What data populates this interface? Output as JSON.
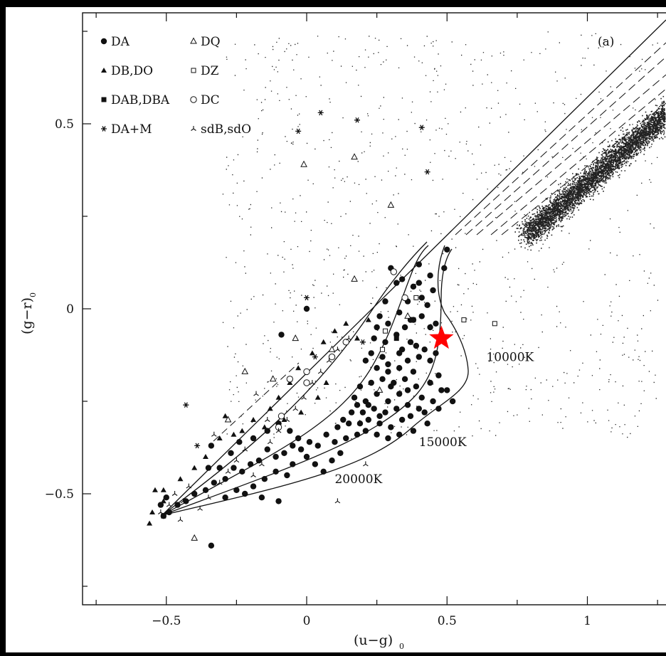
{
  "chart_data": {
    "type": "scatter",
    "panel_label": "(a)",
    "xlabel": "(u−g)",
    "xlabel_sub": "0",
    "ylabel": "(g−r)",
    "ylabel_sub": "0",
    "xlim": [
      -0.8,
      1.27
    ],
    "ylim": [
      -0.8,
      0.8
    ],
    "xticks": [
      {
        "value": -0.5,
        "label": "−0.5"
      },
      {
        "value": 0,
        "label": "0"
      },
      {
        "value": 0.5,
        "label": "0.5"
      },
      {
        "value": 1,
        "label": "1"
      }
    ],
    "yticks": [
      {
        "value": -0.5,
        "label": "−0.5"
      },
      {
        "value": 0,
        "label": "0"
      },
      {
        "value": 0.5,
        "label": "0.5"
      }
    ],
    "legend": [
      {
        "name": "DA",
        "marker": "filled-circle"
      },
      {
        "name": "DQ",
        "marker": "open-triangle"
      },
      {
        "name": "DB,DO",
        "marker": "filled-triangle"
      },
      {
        "name": "DZ",
        "marker": "open-square"
      },
      {
        "name": "DAB,DBA",
        "marker": "filled-square"
      },
      {
        "name": "DC",
        "marker": "open-circle"
      },
      {
        "name": "DA+M",
        "marker": "asterisk"
      },
      {
        "name": "sdB,sdO",
        "marker": "skeletal-triangle"
      }
    ],
    "legend_position": "top-left",
    "temperature_labels": [
      {
        "text": "10000K",
        "x": 0.64,
        "y": -0.13
      },
      {
        "text": "15000K",
        "x": 0.4,
        "y": -0.36
      },
      {
        "text": "20000K",
        "x": 0.1,
        "y": -0.46
      }
    ],
    "highlight": {
      "marker": "red-star",
      "color": "#ff0000",
      "x": 0.48,
      "y": -0.08
    },
    "series": [
      {
        "name": "DA",
        "marker": "filled-circle",
        "points": [
          [
            0.3,
            0.11
          ],
          [
            0.34,
            0.08
          ],
          [
            0.36,
            0.02
          ],
          [
            0.38,
            0.06
          ],
          [
            0.41,
            0.03
          ],
          [
            0.45,
            0.05
          ],
          [
            0.49,
            0.11
          ],
          [
            0.5,
            0.16
          ],
          [
            0.44,
            0.09
          ],
          [
            0.4,
            0.12
          ],
          [
            0.32,
            0.07
          ],
          [
            0.28,
            0.02
          ],
          [
            0.26,
            -0.02
          ],
          [
            0.25,
            -0.05
          ],
          [
            0.29,
            -0.04
          ],
          [
            0.33,
            -0.01
          ],
          [
            0.35,
            -0.05
          ],
          [
            0.38,
            -0.03
          ],
          [
            0.41,
            -0.02
          ],
          [
            0.43,
            0.01
          ],
          [
            0.44,
            -0.05
          ],
          [
            0.46,
            -0.04
          ],
          [
            0.48,
            -0.07
          ],
          [
            0.37,
            -0.09
          ],
          [
            0.39,
            -0.1
          ],
          [
            0.34,
            -0.11
          ],
          [
            0.32,
            -0.07
          ],
          [
            0.28,
            -0.09
          ],
          [
            0.24,
            -0.08
          ],
          [
            0.27,
            -0.13
          ],
          [
            0.23,
            -0.12
          ],
          [
            0.21,
            -0.14
          ],
          [
            0.25,
            -0.16
          ],
          [
            0.29,
            -0.15
          ],
          [
            0.33,
            -0.16
          ],
          [
            0.36,
            -0.14
          ],
          [
            0.4,
            -0.13
          ],
          [
            0.42,
            -0.11
          ],
          [
            0.44,
            -0.14
          ],
          [
            0.46,
            -0.12
          ],
          [
            0.38,
            -0.17
          ],
          [
            0.35,
            -0.19
          ],
          [
            0.31,
            -0.2
          ],
          [
            0.27,
            -0.19
          ],
          [
            0.23,
            -0.2
          ],
          [
            0.19,
            -0.21
          ],
          [
            0.17,
            -0.24
          ],
          [
            0.21,
            -0.25
          ],
          [
            0.25,
            -0.23
          ],
          [
            0.29,
            -0.25
          ],
          [
            0.33,
            -0.23
          ],
          [
            0.36,
            -0.22
          ],
          [
            0.39,
            -0.21
          ],
          [
            0.41,
            -0.24
          ],
          [
            0.44,
            -0.2
          ],
          [
            0.47,
            -0.18
          ],
          [
            0.48,
            -0.22
          ],
          [
            0.45,
            -0.25
          ],
          [
            0.4,
            -0.27
          ],
          [
            0.36,
            -0.26
          ],
          [
            0.32,
            -0.27
          ],
          [
            0.28,
            -0.28
          ],
          [
            0.24,
            -0.27
          ],
          [
            0.2,
            -0.28
          ],
          [
            0.16,
            -0.28
          ],
          [
            0.13,
            -0.3
          ],
          [
            0.11,
            -0.32
          ],
          [
            0.15,
            -0.31
          ],
          [
            0.19,
            -0.31
          ],
          [
            0.22,
            -0.3
          ],
          [
            0.26,
            -0.31
          ],
          [
            0.3,
            -0.32
          ],
          [
            0.34,
            -0.3
          ],
          [
            0.37,
            -0.29
          ],
          [
            0.42,
            -0.28
          ],
          [
            0.47,
            -0.27
          ],
          [
            0.5,
            -0.22
          ],
          [
            0.52,
            -0.25
          ],
          [
            0.43,
            -0.31
          ],
          [
            0.38,
            -0.33
          ],
          [
            0.33,
            -0.34
          ],
          [
            0.29,
            -0.35
          ],
          [
            0.25,
            -0.34
          ],
          [
            0.21,
            -0.33
          ],
          [
            0.18,
            -0.34
          ],
          [
            0.14,
            -0.35
          ],
          [
            0.1,
            -0.36
          ],
          [
            0.07,
            -0.34
          ],
          [
            0.04,
            -0.37
          ],
          [
            0.01,
            -0.36
          ],
          [
            -0.02,
            -0.38
          ],
          [
            -0.05,
            -0.37
          ],
          [
            -0.08,
            -0.39
          ],
          [
            -0.11,
            -0.4
          ],
          [
            -0.14,
            -0.38
          ],
          [
            -0.17,
            -0.41
          ],
          [
            -0.2,
            -0.42
          ],
          [
            -0.23,
            -0.44
          ],
          [
            -0.26,
            -0.43
          ],
          [
            -0.29,
            -0.46
          ],
          [
            -0.33,
            -0.47
          ],
          [
            -0.36,
            -0.49
          ],
          [
            -0.4,
            -0.5
          ],
          [
            -0.43,
            -0.52
          ],
          [
            -0.46,
            -0.53
          ],
          [
            -0.49,
            -0.55
          ],
          [
            -0.51,
            -0.56
          ],
          [
            -0.52,
            -0.53
          ],
          [
            -0.5,
            -0.51
          ],
          [
            -0.27,
            -0.39
          ],
          [
            -0.24,
            -0.36
          ],
          [
            -0.19,
            -0.35
          ],
          [
            -0.14,
            -0.33
          ],
          [
            -0.1,
            -0.31
          ],
          [
            -0.06,
            -0.33
          ],
          [
            -0.03,
            -0.35
          ],
          [
            0.0,
            -0.4
          ],
          [
            0.03,
            -0.42
          ],
          [
            0.06,
            -0.44
          ],
          [
            0.09,
            -0.41
          ],
          [
            0.12,
            -0.39
          ],
          [
            -0.07,
            -0.45
          ],
          [
            -0.11,
            -0.44
          ],
          [
            -0.15,
            -0.46
          ],
          [
            -0.19,
            -0.48
          ],
          [
            -0.22,
            -0.5
          ],
          [
            -0.25,
            -0.49
          ],
          [
            -0.29,
            -0.51
          ],
          [
            -0.1,
            -0.52
          ],
          [
            -0.16,
            -0.51
          ],
          [
            -0.31,
            -0.43
          ],
          [
            -0.35,
            -0.43
          ],
          [
            -0.34,
            -0.37
          ],
          [
            -0.09,
            -0.07
          ],
          [
            0.0,
            0.0
          ],
          [
            -0.05,
            -0.42
          ],
          [
            -0.34,
            -0.64
          ],
          [
            0.22,
            -0.26
          ],
          [
            0.26,
            -0.29
          ],
          [
            0.18,
            -0.26
          ],
          [
            0.3,
            -0.21
          ],
          [
            0.29,
            -0.17
          ],
          [
            0.33,
            -0.12
          ],
          [
            0.37,
            -0.03
          ],
          [
            0.4,
            0.07
          ]
        ]
      },
      {
        "name": "DB,DO",
        "marker": "filled-triangle",
        "points": [
          [
            -0.51,
            -0.52
          ],
          [
            -0.54,
            -0.49
          ],
          [
            -0.55,
            -0.55
          ],
          [
            -0.51,
            -0.49
          ],
          [
            -0.45,
            -0.46
          ],
          [
            -0.4,
            -0.43
          ],
          [
            -0.36,
            -0.4
          ],
          [
            -0.31,
            -0.35
          ],
          [
            -0.26,
            -0.34
          ],
          [
            -0.23,
            -0.33
          ],
          [
            -0.19,
            -0.3
          ],
          [
            -0.15,
            -0.32
          ],
          [
            -0.13,
            -0.27
          ],
          [
            -0.1,
            -0.24
          ],
          [
            -0.06,
            -0.2
          ],
          [
            -0.03,
            -0.16
          ],
          [
            0.02,
            -0.12
          ],
          [
            0.06,
            -0.09
          ],
          [
            0.1,
            -0.06
          ],
          [
            0.14,
            -0.04
          ],
          [
            0.18,
            -0.08
          ],
          [
            0.22,
            -0.03
          ],
          [
            0.07,
            -0.2
          ],
          [
            0.04,
            -0.24
          ],
          [
            -0.02,
            -0.28
          ],
          [
            -0.08,
            -0.3
          ],
          [
            -0.29,
            -0.29
          ],
          [
            -0.56,
            -0.58
          ]
        ]
      },
      {
        "name": "DAB,DBA",
        "marker": "filled-square",
        "points": [
          [
            -0.51,
            -0.56
          ],
          [
            0.32,
            -0.08
          ],
          [
            0.38,
            -0.03
          ]
        ]
      },
      {
        "name": "DA+M",
        "marker": "asterisk",
        "points": [
          [
            0.05,
            0.53
          ],
          [
            0.18,
            0.51
          ],
          [
            0.41,
            0.49
          ],
          [
            -0.03,
            0.48
          ],
          [
            0.43,
            0.37
          ],
          [
            -0.43,
            -0.26
          ],
          [
            -0.39,
            -0.37
          ],
          [
            0.0,
            0.03
          ],
          [
            0.03,
            -0.13
          ],
          [
            0.2,
            -0.09
          ]
        ]
      },
      {
        "name": "DQ",
        "marker": "open-triangle",
        "points": [
          [
            -0.01,
            0.39
          ],
          [
            0.17,
            0.41
          ],
          [
            0.3,
            0.28
          ],
          [
            0.17,
            0.08
          ],
          [
            -0.22,
            -0.17
          ],
          [
            -0.28,
            -0.3
          ],
          [
            -0.4,
            -0.62
          ],
          [
            0.36,
            -0.02
          ],
          [
            -0.04,
            -0.08
          ],
          [
            0.09,
            -0.11
          ],
          [
            -0.12,
            -0.19
          ],
          [
            0.26,
            -0.22
          ]
        ]
      },
      {
        "name": "DZ",
        "marker": "open-square",
        "points": [
          [
            0.56,
            -0.03
          ],
          [
            0.67,
            -0.04
          ],
          [
            0.39,
            0.03
          ],
          [
            0.27,
            -0.11
          ],
          [
            0.28,
            -0.06
          ],
          [
            -0.06,
            -0.19
          ]
        ]
      },
      {
        "name": "DC",
        "marker": "open-circle",
        "points": [
          [
            0.31,
            0.1
          ],
          [
            0.35,
            0.03
          ],
          [
            0.14,
            -0.09
          ],
          [
            0.09,
            -0.13
          ],
          [
            0.0,
            -0.17
          ],
          [
            0.0,
            -0.2
          ],
          [
            -0.09,
            -0.29
          ],
          [
            -0.1,
            -0.32
          ],
          [
            -0.06,
            -0.19
          ]
        ]
      },
      {
        "name": "sdB,sdO",
        "marker": "skeletal-triangle",
        "points": [
          [
            -0.52,
            -0.55
          ],
          [
            -0.49,
            -0.53
          ],
          [
            -0.47,
            -0.5
          ],
          [
            -0.44,
            -0.52
          ],
          [
            -0.42,
            -0.48
          ],
          [
            -0.38,
            -0.54
          ],
          [
            -0.35,
            -0.51
          ],
          [
            -0.31,
            -0.47
          ],
          [
            -0.28,
            -0.44
          ],
          [
            -0.25,
            -0.41
          ],
          [
            -0.22,
            -0.38
          ],
          [
            -0.19,
            -0.45
          ],
          [
            -0.16,
            -0.42
          ],
          [
            -0.13,
            -0.36
          ],
          [
            -0.1,
            -0.33
          ],
          [
            -0.07,
            -0.3
          ],
          [
            -0.04,
            -0.27
          ],
          [
            -0.01,
            -0.24
          ],
          [
            0.02,
            -0.2
          ],
          [
            0.05,
            -0.17
          ],
          [
            0.08,
            -0.14
          ],
          [
            0.11,
            -0.11
          ],
          [
            0.15,
            -0.08
          ],
          [
            -0.18,
            -0.23
          ],
          [
            -0.14,
            -0.3
          ],
          [
            -0.33,
            -0.34
          ],
          [
            -0.45,
            -0.57
          ],
          [
            0.21,
            -0.42
          ],
          [
            0.11,
            -0.52
          ]
        ]
      }
    ],
    "field_stars": {
      "marker": "dot",
      "description_count": 0
    }
  }
}
